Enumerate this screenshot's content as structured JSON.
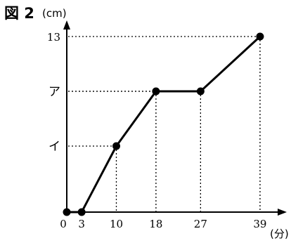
{
  "figure": {
    "label": "図 2",
    "y_unit": "(cm)",
    "x_unit": "(分)"
  },
  "chart_data": {
    "type": "line",
    "title": "図 2",
    "xlabel": "(分)",
    "ylabel": "(cm)",
    "origin_label": "0",
    "x_ticks": [
      "3",
      "10",
      "18",
      "27",
      "39"
    ],
    "y_ticks": [
      "イ",
      "ア",
      "13"
    ],
    "grid": false,
    "guide_lines": "dotted",
    "series": [
      {
        "points": [
          {
            "x": 0,
            "y": 0
          },
          {
            "x": 3,
            "y": 0
          },
          {
            "x": 10,
            "y": "イ"
          },
          {
            "x": 18,
            "y": "ア"
          },
          {
            "x": 27,
            "y": "ア"
          },
          {
            "x": 39,
            "y": 13
          }
        ]
      }
    ],
    "colors": {
      "line": "#000000",
      "marker": "#000000",
      "guide": "#000000"
    }
  }
}
